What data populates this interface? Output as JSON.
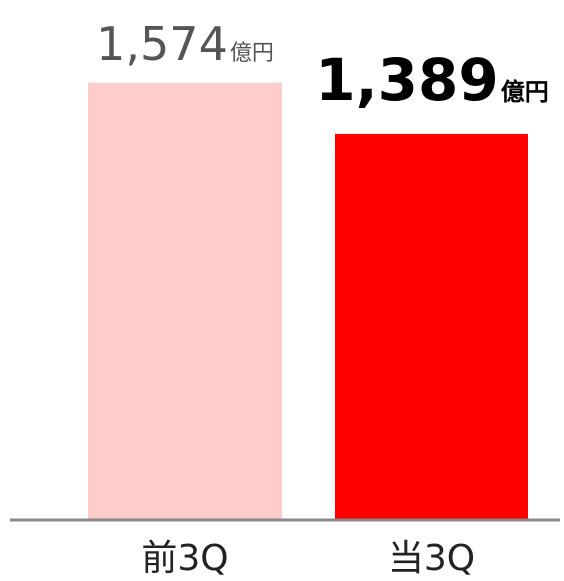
{
  "chart_data": {
    "type": "bar",
    "categories": [
      "前3Q",
      "当3Q"
    ],
    "values": [
      1574,
      1389
    ],
    "value_labels": [
      "1,574",
      "1,389"
    ],
    "unit": "億円",
    "colors": [
      "#ffcccc",
      "#ff0000"
    ],
    "ylim": [
      0,
      1800
    ]
  }
}
